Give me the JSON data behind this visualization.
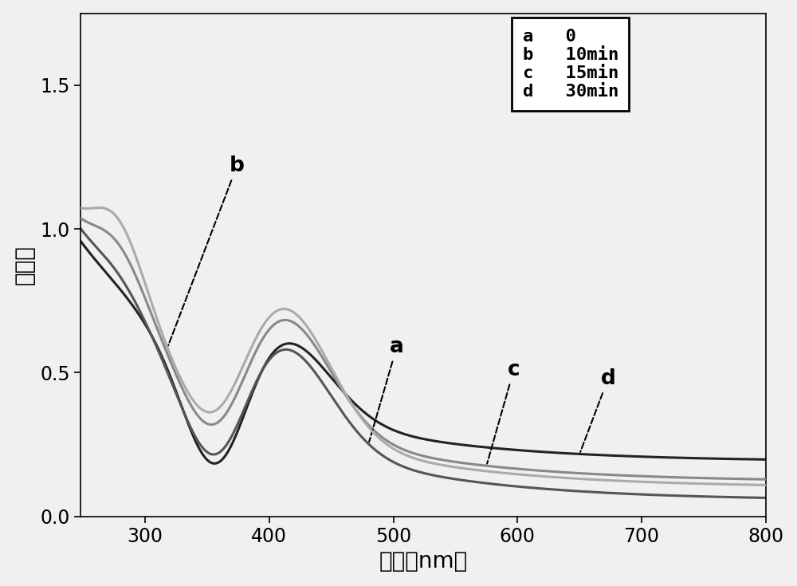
{
  "xlabel": "波长（nm）",
  "ylabel": "吸光度",
  "xlim": [
    248,
    800
  ],
  "ylim": [
    0.0,
    1.75
  ],
  "xticks": [
    300,
    400,
    500,
    600,
    700,
    800
  ],
  "yticks": [
    0.0,
    0.5,
    1.0,
    1.5
  ],
  "ytick_labels": [
    "0.0",
    "0.5",
    "1.0",
    "1.5"
  ],
  "background_color": "#f0f0f0",
  "curve_colors": {
    "a": "#555555",
    "b": "#aaaaaa",
    "c": "#888888",
    "d": "#222222"
  },
  "xlabel_fontsize": 20,
  "ylabel_fontsize": 20,
  "tick_fontsize": 17,
  "legend_fontsize": 16,
  "linewidth": 2.2,
  "annot_fontsize": 19
}
